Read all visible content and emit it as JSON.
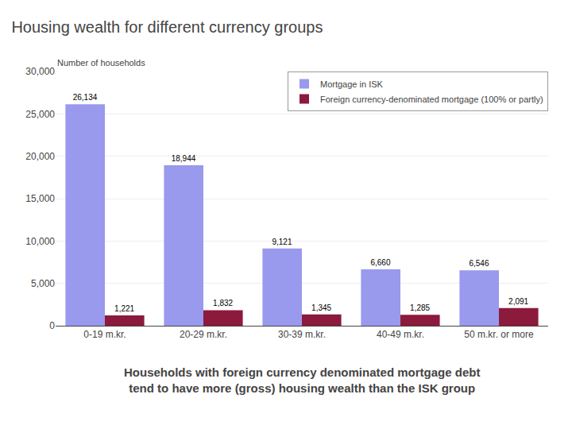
{
  "chart_data": {
    "type": "bar",
    "title": "Housing wealth for different currency groups",
    "subtitle": [
      "Households with foreign currency denominated mortgage debt",
      "tend to have more (gross) housing wealth than the ISK group"
    ],
    "ylabel": "Number of households",
    "categories": [
      "0-19 m.kr.",
      "20-29 m.kr.",
      "30-39 m.kr.",
      "40-49 m.kr.",
      "50 m.kr. or more"
    ],
    "series": [
      {
        "name": "Mortgage in ISK",
        "color": "#9999ee",
        "values": [
          26134,
          18944,
          9121,
          6660,
          6546
        ],
        "value_labels": [
          "26,134",
          "18,944",
          "9,121",
          "6,660",
          "6,546"
        ]
      },
      {
        "name": "Foreign currency-denominated mortgage (100% or partly)",
        "color": "#8b1a3c",
        "values": [
          1221,
          1832,
          1345,
          1285,
          2091
        ],
        "value_labels": [
          "1,221",
          "1,832",
          "1,345",
          "1,285",
          "2,091"
        ]
      }
    ],
    "ylim": [
      0,
      30000
    ],
    "yticks": [
      0,
      {
        "value": 5000,
        "label": "5,000"
      },
      {
        "value": 10000,
        "label": "10,000"
      },
      {
        "value": 15000,
        "label": "15,000"
      },
      {
        "value": 20000,
        "label": "20,000"
      },
      {
        "value": 25000,
        "label": "25,000"
      },
      {
        "value": 30000,
        "label": "30,000"
      }
    ],
    "grid": true,
    "legend": "upper right",
    "data_labels": true
  }
}
